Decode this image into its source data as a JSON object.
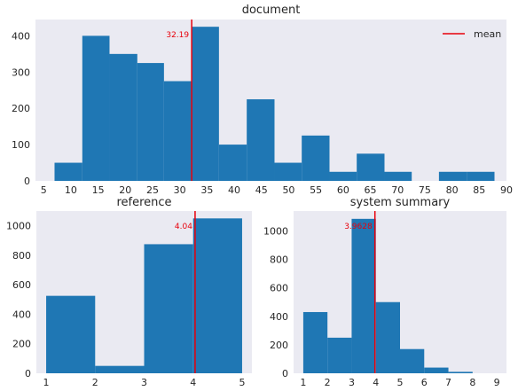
{
  "chart_data": [
    {
      "type": "bar",
      "title": "document",
      "xlabel": "",
      "ylabel": "",
      "xlim": [
        3.5,
        90
      ],
      "ylim": [
        0,
        445
      ],
      "xticks": [
        5,
        10,
        15,
        20,
        25,
        30,
        35,
        40,
        45,
        50,
        55,
        60,
        65,
        70,
        75,
        80,
        85,
        90
      ],
      "yticks": [
        0,
        100,
        200,
        300,
        400
      ],
      "bin_edges": [
        7,
        12.1,
        17.1,
        22.2,
        27.1,
        32.2,
        37.2,
        42.3,
        47.4,
        52.4,
        57.5,
        62.5,
        67.6,
        72.6,
        77.6,
        82.7,
        87.8
      ],
      "values": [
        50,
        400,
        350,
        325,
        275,
        425,
        100,
        225,
        50,
        125,
        25,
        75,
        25,
        0,
        25,
        25
      ],
      "mean": 32.19,
      "mean_label": "32.19",
      "legend": [
        {
          "name": "mean",
          "color": "#e8000b"
        }
      ],
      "legend_position": "top-right",
      "grid": false
    },
    {
      "type": "bar",
      "title": "reference",
      "xlabel": "",
      "ylabel": "",
      "xlim": [
        0.8,
        5.2
      ],
      "ylim": [
        0,
        1100
      ],
      "xticks": [
        1,
        2,
        3,
        4,
        5
      ],
      "yticks": [
        0,
        200,
        400,
        600,
        800,
        1000
      ],
      "bin_edges": [
        1,
        2,
        3,
        4,
        5
      ],
      "values": [
        525,
        50,
        875,
        1050
      ],
      "mean": 4.04,
      "mean_label": "4.04",
      "grid": false
    },
    {
      "type": "bar",
      "title": "system summary",
      "xlabel": "",
      "ylabel": "",
      "xlim": [
        0.6,
        9.4
      ],
      "ylim": [
        0,
        1140
      ],
      "xticks": [
        1,
        2,
        3,
        4,
        5,
        6,
        7,
        8,
        9
      ],
      "yticks": [
        0,
        200,
        400,
        600,
        800,
        1000
      ],
      "bin_edges": [
        1,
        2,
        3,
        4,
        5,
        6,
        7,
        8,
        9
      ],
      "values": [
        430,
        250,
        1085,
        500,
        170,
        40,
        10,
        0
      ],
      "mean": 3.9628,
      "mean_label": "3.9628",
      "grid": false
    }
  ],
  "style": {
    "bar_color": "#1f77b4",
    "mean_color": "#e8000b",
    "plot_bg": "#eaeaf2"
  }
}
